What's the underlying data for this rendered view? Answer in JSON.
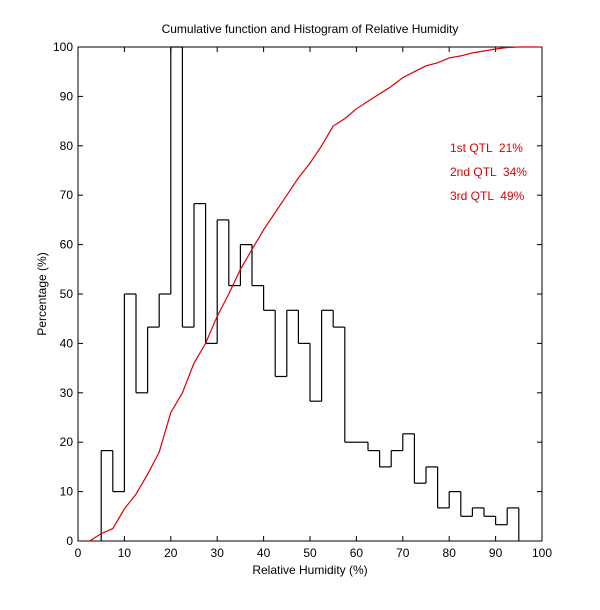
{
  "chart_data": {
    "type": "line",
    "title": "Cumulative function and Histogram of Relative Humidity",
    "xlabel": "Relative Humidity (%)",
    "ylabel": "Percentage (%)",
    "xlim": [
      0,
      100
    ],
    "ylim": [
      0,
      100
    ],
    "xticks": [
      0,
      10,
      20,
      30,
      40,
      50,
      60,
      70,
      80,
      90,
      100
    ],
    "yticks": [
      0,
      10,
      20,
      30,
      40,
      50,
      60,
      70,
      80,
      90,
      100
    ],
    "grid": false,
    "series": [
      {
        "name": "Histogram",
        "kind": "step",
        "color": "#000000",
        "bin_width": 2.5,
        "bin_starts": [
          5,
          7.5,
          10,
          12.5,
          15,
          17.5,
          20,
          22.5,
          25,
          27.5,
          30,
          32.5,
          35,
          37.5,
          40,
          42.5,
          45,
          47.5,
          50,
          52.5,
          55,
          57.5,
          60,
          62.5,
          65,
          67.5,
          70,
          72.5,
          75,
          77.5,
          80,
          82.5,
          85,
          87.5,
          90,
          92.5
        ],
        "values": [
          18.3,
          10,
          50,
          30,
          43.3,
          50,
          100,
          43.3,
          68.3,
          40,
          65,
          51.7,
          60,
          51.7,
          46.7,
          33.3,
          46.7,
          40,
          28.3,
          46.7,
          43.3,
          20,
          20,
          18.3,
          15,
          18.3,
          21.7,
          11.7,
          15,
          6.7,
          10,
          5,
          6.7,
          5,
          3.3,
          6.7
        ]
      },
      {
        "name": "Cumulative function",
        "kind": "line",
        "color": "#dd0000",
        "x": [
          2.5,
          5,
          7.5,
          10,
          12.5,
          15,
          17.5,
          20,
          22.5,
          25,
          27.5,
          30,
          32.5,
          35,
          37.5,
          40,
          42.5,
          45,
          47.5,
          50,
          52.5,
          55,
          57.5,
          60,
          62.5,
          65,
          67.5,
          70,
          72.5,
          75,
          77.5,
          80,
          82.5,
          85,
          87.5,
          90,
          92.5,
          95,
          100
        ],
        "y": [
          0,
          1.5,
          2.5,
          6.5,
          9.5,
          13.5,
          18,
          26,
          30,
          36,
          40,
          45.5,
          50,
          55,
          59,
          63,
          66.5,
          70,
          73.5,
          76.5,
          80,
          84,
          85.5,
          87.5,
          89,
          90.5,
          92,
          93.8,
          95,
          96.2,
          96.8,
          97.8,
          98.2,
          98.8,
          99.2,
          99.6,
          99.9,
          100,
          100
        ]
      }
    ],
    "annotations": [
      "1st QTL  21%",
      "2nd QTL  34%",
      "3rd QTL  49%"
    ],
    "annotation_color": "#dd0000"
  }
}
